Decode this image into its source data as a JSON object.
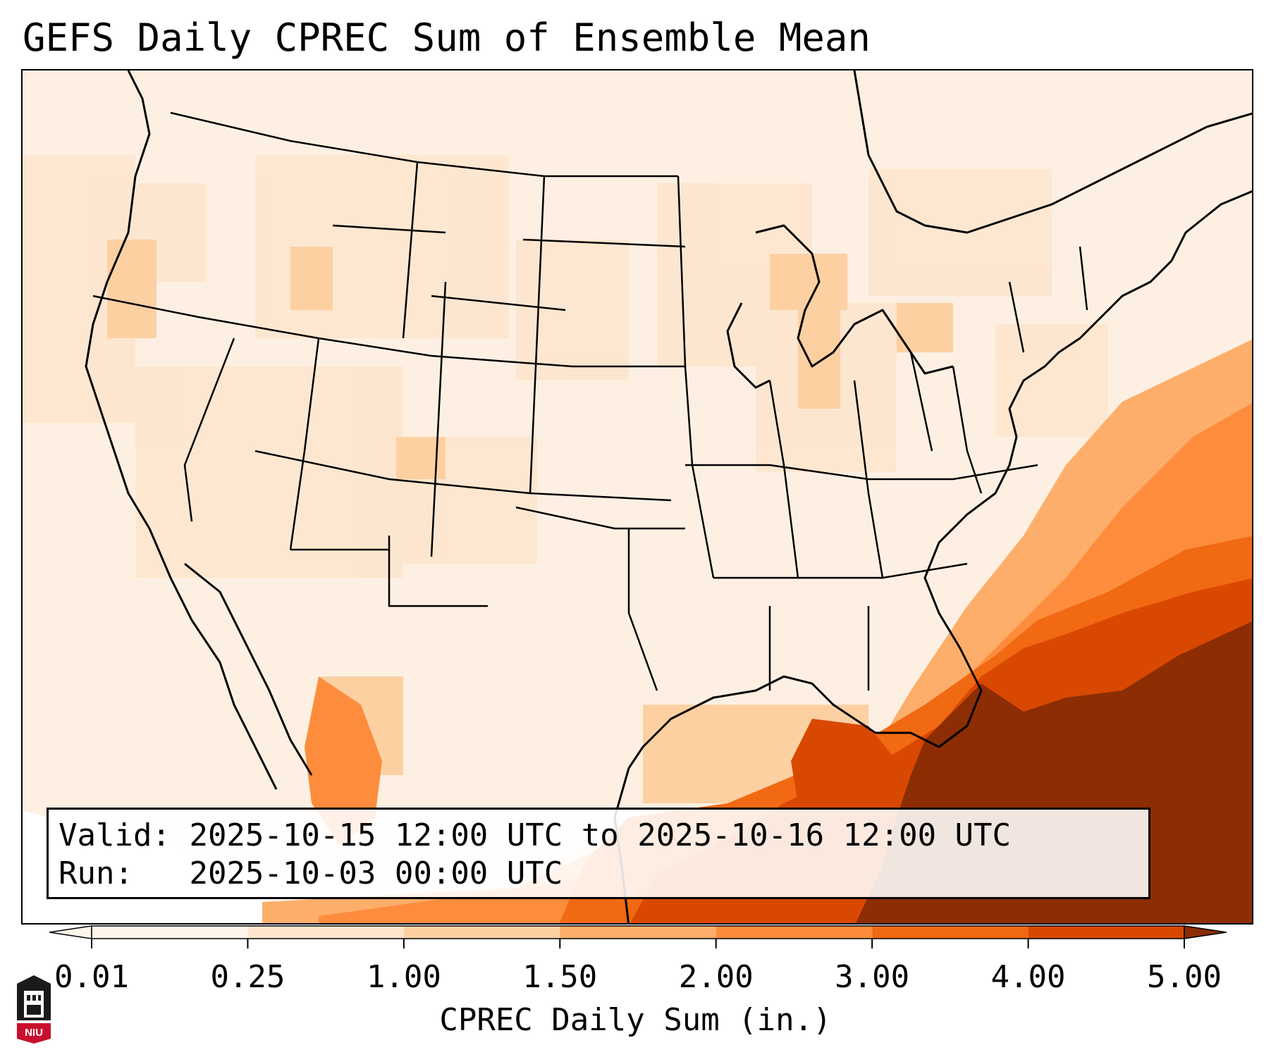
{
  "title": "GEFS Daily CPREC Sum of Ensemble Mean",
  "info": {
    "valid_label": "Valid:",
    "valid_value": "2025-10-15 12:00 UTC to 2025-10-16 12:00 UTC",
    "run_label": "Run:",
    "run_value": "2025-10-03 00:00 UTC"
  },
  "colorbar": {
    "label": "CPREC Daily Sum (in.)",
    "ticks": [
      "0.01",
      "0.25",
      "1.00",
      "1.50",
      "2.00",
      "3.00",
      "4.00",
      "5.00"
    ],
    "colors": [
      "#fff5eb",
      "#fee6ce",
      "#fdd0a2",
      "#fdae6b",
      "#fd8d3c",
      "#f16913",
      "#d94801",
      "#8c2d04"
    ],
    "extend": "both"
  },
  "map": {
    "projection": "Lambert conformal, continental US",
    "heaviest_area": "Atlantic off Florida / Gulf of Mexico",
    "colors": {
      "outline": "#000000",
      "frame": "#000000"
    }
  },
  "logo": {
    "text": "NIU",
    "colors": {
      "shield": "#1a1a1a",
      "banner": "#c8102e"
    }
  }
}
